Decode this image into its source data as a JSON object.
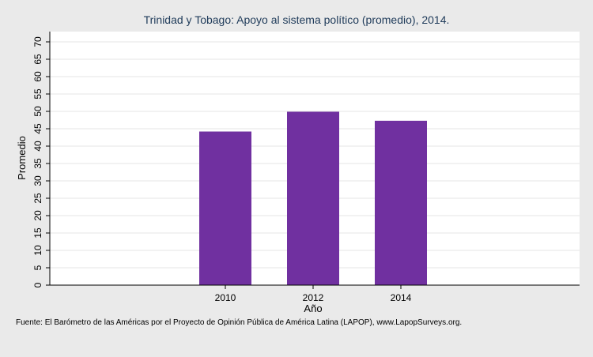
{
  "chart_data": {
    "type": "bar",
    "title": "Trinidad y Tobago: Apoyo al sistema político (promedio), 2014.",
    "xlabel": "Año",
    "ylabel": "Promedio",
    "categories": [
      "2010",
      "2012",
      "2014"
    ],
    "values": [
      44.2,
      49.9,
      47.3
    ],
    "ylim": [
      0,
      70
    ],
    "yticks": [
      0,
      5,
      10,
      15,
      20,
      25,
      30,
      35,
      40,
      45,
      50,
      55,
      60,
      65,
      70
    ],
    "grid": true,
    "bar_color": "#7030a0"
  },
  "source": "Fuente: El Barómetro de las Américas por el Proyecto de Opinión Pública de América Latina (LAPOP), www.LapopSurveys.org."
}
